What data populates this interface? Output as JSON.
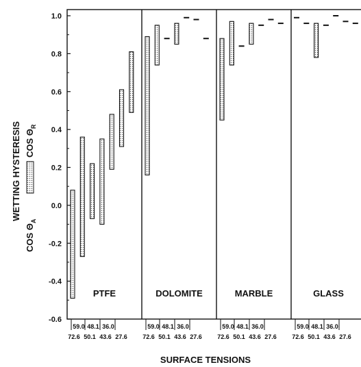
{
  "chart_data": {
    "type": "bar",
    "subtype": "floating-range",
    "ylabel": "WETTING HYSTERESIS",
    "ylabel_parts": {
      "lower": "COS Θ",
      "lower_sub": "A",
      "upper": "COS Θ",
      "upper_sub": "R"
    },
    "xlabel": "SURFACE TENSIONS",
    "ylim": [
      -0.6,
      1.05
    ],
    "yticks": [
      "-0.6",
      "-0.4",
      "-0.2",
      "0.0",
      "0.2",
      "0.4",
      "0.6",
      "0.8",
      "1.0"
    ],
    "ytick_values": [
      -0.6,
      -0.4,
      -0.2,
      0.0,
      0.2,
      0.4,
      0.6,
      0.8,
      1.0
    ],
    "xtick_top": [
      "59.0",
      "48.1",
      "36.0"
    ],
    "xtick_bottom": [
      "72.6",
      "50.1",
      "43.6",
      "27.6"
    ],
    "surface_tensions": [
      72.6,
      59.0,
      50.1,
      48.1,
      43.6,
      36.0,
      27.6
    ],
    "panels": [
      {
        "label": "PTFE",
        "ranges": [
          [
            -0.49,
            0.08
          ],
          [
            -0.27,
            0.36
          ],
          [
            -0.07,
            0.22
          ],
          [
            -0.1,
            0.35
          ],
          [
            0.19,
            0.48
          ],
          [
            0.31,
            0.61
          ],
          [
            0.49,
            0.81
          ]
        ]
      },
      {
        "label": "DOLOMITE",
        "ranges": [
          [
            0.16,
            0.89
          ],
          [
            0.74,
            0.95
          ],
          [
            0.88,
            0.88
          ],
          [
            0.85,
            0.96
          ],
          [
            0.99,
            0.99
          ],
          [
            0.98,
            0.98
          ],
          [
            0.88,
            0.88
          ]
        ]
      },
      {
        "label": "MARBLE",
        "ranges": [
          [
            0.45,
            0.88
          ],
          [
            0.74,
            0.97
          ],
          [
            0.84,
            0.84
          ],
          [
            0.85,
            0.96
          ],
          [
            0.95,
            0.95
          ],
          [
            0.98,
            0.98
          ],
          [
            0.96,
            0.96
          ]
        ]
      },
      {
        "label": "GLASS",
        "ranges": [
          [
            0.99,
            0.99
          ],
          [
            0.96,
            0.96
          ],
          [
            0.78,
            0.96
          ],
          [
            0.95,
            0.95
          ],
          [
            1.0,
            1.0
          ],
          [
            0.97,
            0.97
          ],
          [
            0.96,
            0.96
          ]
        ]
      }
    ],
    "grid": false,
    "legend": "none"
  }
}
